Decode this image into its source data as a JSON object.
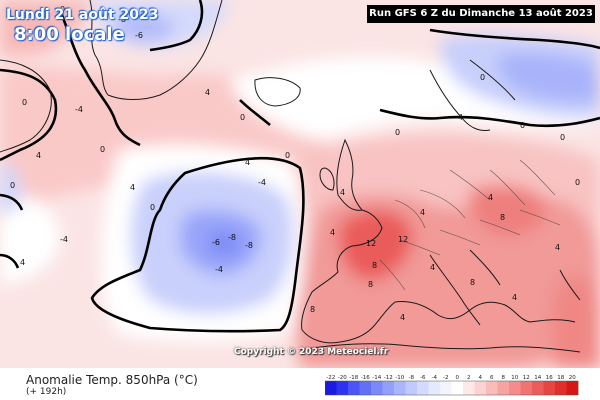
{
  "header": {
    "valid_date": "Lundi 21 août 2023",
    "valid_time": "8:00 locale",
    "run_info": "Run GFS 6 Z du Dimanche 13 août 2023"
  },
  "footer": {
    "copyright": "Copyright © 2023 Meteociel.fr",
    "field_title": "Anomalie Temp. 850hPa (°C)",
    "forecast_hour": "(+ 192h)"
  },
  "legend": {
    "ticks": [
      "-22",
      "-20",
      "-18",
      "-16",
      "-14",
      "-12",
      "-10",
      "-8",
      "-6",
      "-4",
      "-2",
      "0",
      "2",
      "4",
      "6",
      "8",
      "10",
      "12",
      "14",
      "16",
      "18",
      "20"
    ],
    "colors": [
      "#1a1ae0",
      "#2e33f0",
      "#4a55f4",
      "#6270f6",
      "#7a88f8",
      "#93a0fa",
      "#aab6fb",
      "#c0cafc",
      "#d3dbfd",
      "#e4e9fe",
      "#f2f5ff",
      "#ffffff",
      "#fde9e9",
      "#fbd3d2",
      "#f9bcbb",
      "#f6a4a3",
      "#f38d8b",
      "#ef7573",
      "#eb5d5b",
      "#e54643",
      "#de2f2c",
      "#d41915"
    ]
  },
  "map_labels": [
    {
      "text": "0"
    },
    {
      "text": "-6"
    },
    {
      "text": "-8"
    },
    {
      "text": "0"
    },
    {
      "text": "-4"
    },
    {
      "text": "0"
    },
    {
      "text": "4"
    },
    {
      "text": "0"
    },
    {
      "text": "-4"
    },
    {
      "text": "0"
    },
    {
      "text": "4"
    },
    {
      "text": "-6"
    },
    {
      "text": "-8"
    },
    {
      "text": "-8"
    },
    {
      "text": "-4"
    },
    {
      "text": "-4"
    },
    {
      "text": "4"
    },
    {
      "text": "0"
    },
    {
      "text": "12"
    },
    {
      "text": "12"
    },
    {
      "text": "8"
    },
    {
      "text": "8"
    },
    {
      "text": "4"
    },
    {
      "text": "8"
    },
    {
      "text": "0"
    },
    {
      "text": "0"
    },
    {
      "text": "-4"
    },
    {
      "text": "0"
    },
    {
      "text": "4"
    },
    {
      "text": "0"
    },
    {
      "text": "4"
    },
    {
      "text": "8"
    },
    {
      "text": "4"
    },
    {
      "text": "4"
    },
    {
      "text": "4"
    },
    {
      "text": "0"
    },
    {
      "text": "4"
    },
    {
      "text": "0"
    },
    {
      "text": "4"
    },
    {
      "text": "4"
    },
    {
      "text": "4"
    },
    {
      "text": "8"
    }
  ]
}
